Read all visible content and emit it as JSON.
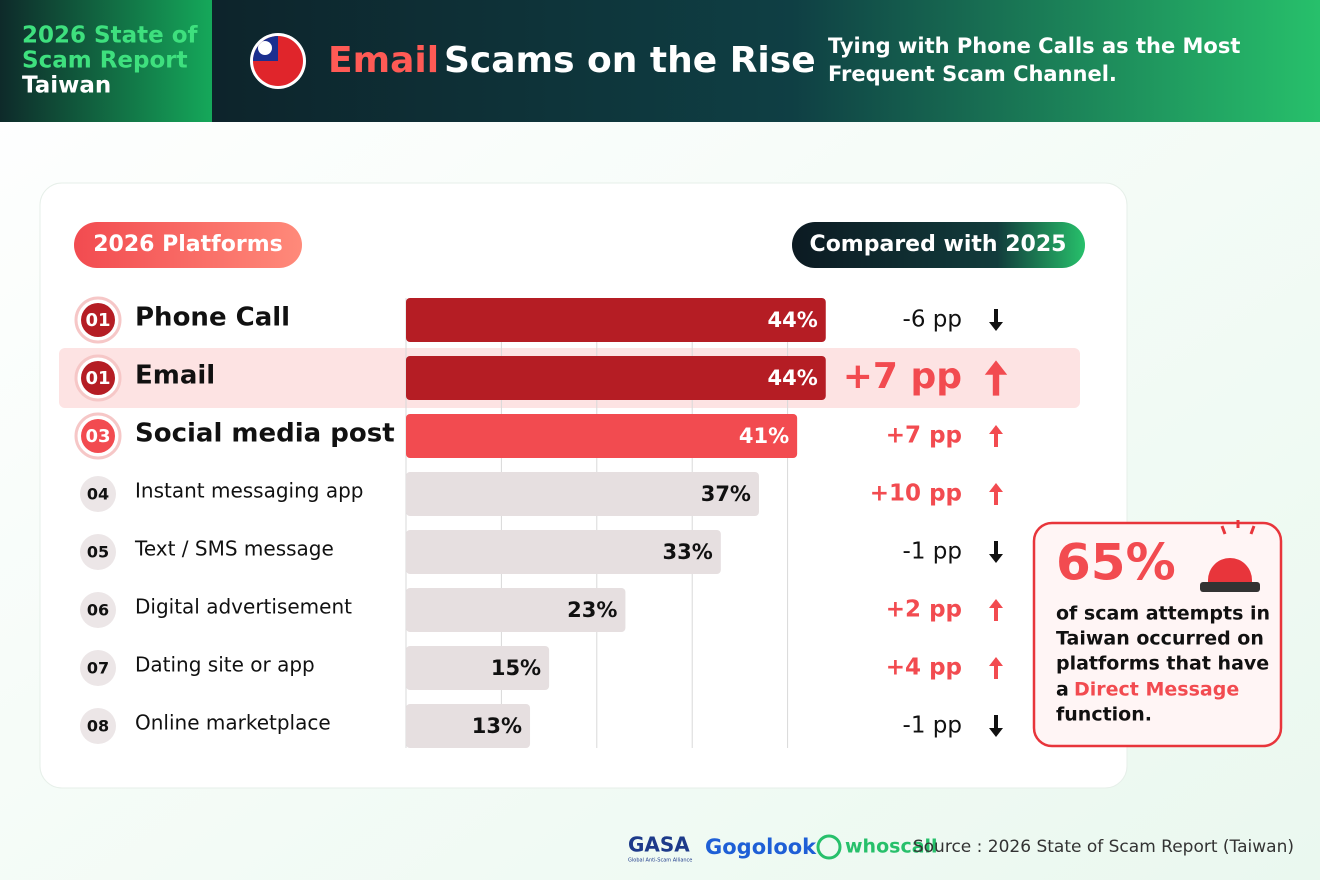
{
  "header": {
    "report_line1": "2026 State of",
    "report_line2": "Scam Report",
    "report_line3": "Taiwan",
    "title_highlight": "Email",
    "title_rest": "Scams on the Rise",
    "subtitle_line1": "Tying with Phone Calls as the Most",
    "subtitle_line2": "Frequent Scam Channel."
  },
  "chart_data": {
    "type": "bar",
    "orientation": "horizontal",
    "left_heading": "2026 Platforms",
    "right_heading": "Compared with 2025",
    "ranks": [
      "01",
      "01",
      "03",
      "04",
      "05",
      "06",
      "07",
      "08"
    ],
    "categories": [
      "Phone Call",
      "Email",
      "Social media post",
      "Instant messaging app",
      "Text / SMS message",
      "Digital advertisement",
      "Dating site or app",
      "Online marketplace"
    ],
    "values": [
      44,
      44,
      41,
      37,
      33,
      23,
      15,
      13
    ],
    "value_labels": [
      "44%",
      "44%",
      "41%",
      "37%",
      "33%",
      "23%",
      "15%",
      "13%"
    ],
    "colors": [
      "#b51d24",
      "#b51d24",
      "#f24b50",
      "#e6dfe0",
      "#e6dfe0",
      "#e6dfe0",
      "#e6dfe0",
      "#e6dfe0"
    ],
    "changes": [
      -6,
      7,
      7,
      10,
      -1,
      2,
      4,
      -1
    ],
    "change_labels": [
      "-6 pp",
      "+7 pp",
      "+7 pp",
      "+10 pp",
      "-1 pp",
      "+2 pp",
      "+4 pp",
      "-1 pp"
    ],
    "highlight_index": 1,
    "xlim": [
      0,
      50
    ],
    "xticks": [
      0,
      10,
      20,
      30,
      40
    ],
    "grid": true
  },
  "callout": {
    "big": "65%",
    "line1": "of scam attempts in",
    "line2": "Taiwan occurred on",
    "line3": "platforms that have",
    "line4_prefix": "a",
    "line4_highlight": "Direct Message",
    "line5": "function."
  },
  "footer": {
    "logo1": "GASA",
    "logo1_sub": "Global Anti-Scam Alliance",
    "logo2": "Gogolook",
    "logo3": "whoscall",
    "source": "Source : 2026 State of Scam Report (Taiwan)"
  }
}
